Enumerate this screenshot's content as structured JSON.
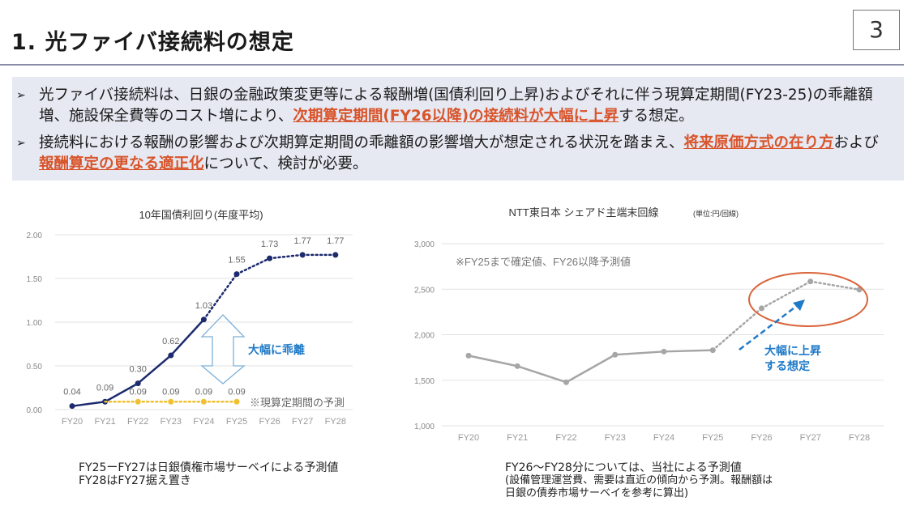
{
  "header": {
    "title": "1. 光ファイバ接続料の想定",
    "page_number": "3"
  },
  "bullets": [
    {
      "mark": "➢",
      "parts": [
        {
          "text": "光ファイバ接続料は、日銀の金融政策変更等による報酬増(国債利回り上昇)およびそれに伴う現算定期間(FY23-25)の乖離額増、施設保全費等のコスト増により、",
          "highlight": false
        },
        {
          "text": "次期算定期間(FY26以降)の接続料が大幅に上昇",
          "highlight": true
        },
        {
          "text": "する想定。",
          "highlight": false
        }
      ]
    },
    {
      "mark": "➢",
      "parts": [
        {
          "text": "接続料における報酬の影響および次期算定期間の乖離額の影響増大が想定される状況を踏まえ、",
          "highlight": false
        },
        {
          "text": "将来原価方式の在り方",
          "highlight": true
        },
        {
          "text": "および",
          "highlight": false
        },
        {
          "text": "報酬算定の更なる適正化",
          "highlight": true
        },
        {
          "text": "について、検討が必要。",
          "highlight": false
        }
      ]
    }
  ],
  "chart_data": [
    {
      "type": "line",
      "title": "10年国債利回り(年度平均)",
      "categories": [
        "FY20",
        "FY21",
        "FY22",
        "FY23",
        "FY24",
        "FY25",
        "FY26",
        "FY27",
        "FY28"
      ],
      "ylim": [
        0,
        2.0
      ],
      "yticks": [
        "0.00",
        "0.50",
        "1.00",
        "1.50",
        "2.00"
      ],
      "grid": true,
      "series": [
        {
          "name": "10年国債利回り",
          "values": [
            0.04,
            0.09,
            0.3,
            0.62,
            1.03,
            1.55,
            1.73,
            1.77,
            1.77
          ],
          "labels": [
            "0.04",
            "0.09",
            "0.30",
            "0.62",
            "1.03",
            "1.55",
            "1.73",
            "1.77",
            "1.77"
          ],
          "solid_until_index": 4,
          "color": "#1c2a6e"
        },
        {
          "name": "現算定期間の予測",
          "values": [
            null,
            0.09,
            0.09,
            0.09,
            0.09,
            0.09,
            null,
            null,
            null
          ],
          "labels": [
            null,
            null,
            "0.09",
            "0.09",
            "0.09",
            "0.09",
            null,
            null,
            null
          ],
          "color": "#f0c030"
        }
      ],
      "annotations": {
        "gap_label": "大幅に乖離",
        "forecast_note": "※現算定期間の予測",
        "accent": "#1f7ac8"
      },
      "footnote": [
        "FY25ーFY27は日銀債権市場サーベイによる予測値",
        "FY28はFY27据え置き"
      ]
    },
    {
      "type": "line",
      "title": "NTT東日本 シェアド主端末回線",
      "unit": "(単位:円/回線)",
      "categories": [
        "FY20",
        "FY21",
        "FY22",
        "FY23",
        "FY24",
        "FY25",
        "FY26",
        "FY27",
        "FY28"
      ],
      "ylim": [
        1000,
        3000
      ],
      "yticks": [
        "1,000",
        "1,500",
        "2,000",
        "2,500",
        "3,000"
      ],
      "grid": true,
      "series": [
        {
          "name": "接続料",
          "values": [
            1770,
            1655,
            1478,
            1780,
            1815,
            1830,
            2290,
            2585,
            2495
          ],
          "solid_until_index": 5,
          "color": "#a6a6a6"
        }
      ],
      "annotations": {
        "note": "※FY25まで確定値、FY26以降予測値",
        "rise_label": [
          "大幅に上昇",
          "する想定"
        ],
        "accent": "#1f7ac8",
        "circle_color": "#d9643a"
      },
      "footnote": [
        "FY26～FY28分については、当社による予測値",
        "(設備管理運営費、需要は直近の傾向から予測。報酬額は",
        "日銀の債券市場サーベイを参考に算出)"
      ]
    }
  ]
}
